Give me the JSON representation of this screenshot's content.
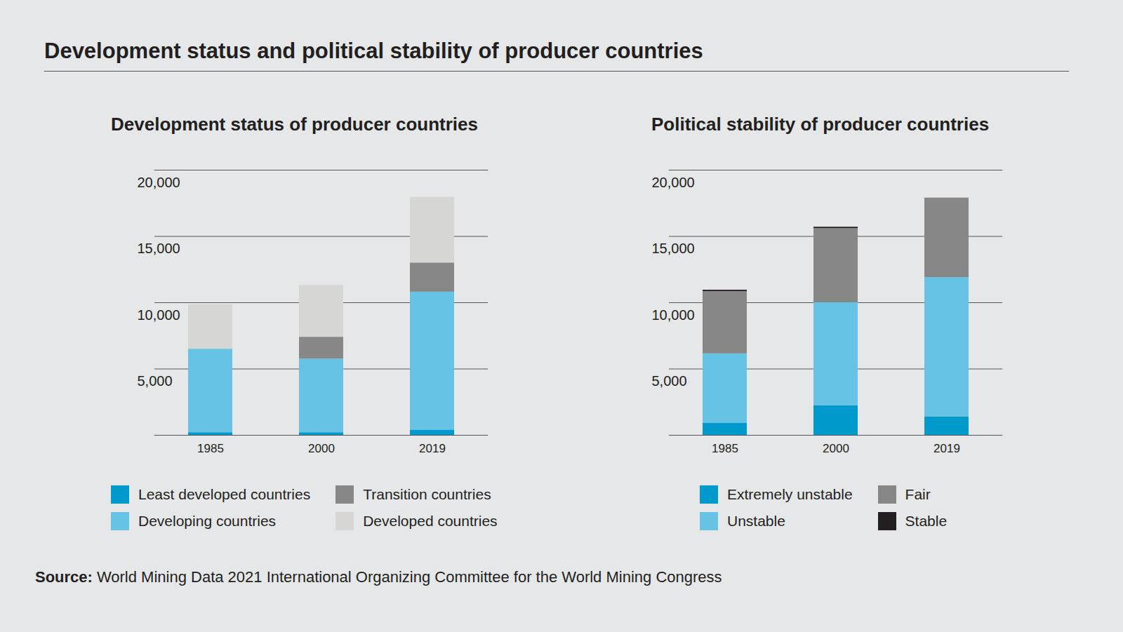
{
  "title": "Development status and political stability of producer countries",
  "source_label": "Source:",
  "source": "World Mining Data 2021 International Organizing Committee for the World Mining Congress",
  "chart_data": [
    {
      "type": "bar",
      "title": "Development status of producer countries",
      "categories": [
        "1985",
        "2000",
        "2019"
      ],
      "series": [
        {
          "name": "Least developed countries",
          "color": "#0099cc",
          "values": [
            200,
            200,
            400
          ]
        },
        {
          "name": "Developing countries",
          "color": "#66c3e3",
          "values": [
            6300,
            5550,
            10400
          ]
        },
        {
          "name": "Transition countries",
          "color": "#878787",
          "values": [
            0,
            1650,
            2200
          ]
        },
        {
          "name": "Developed countries",
          "color": "#d6d6d4",
          "values": [
            3350,
            3900,
            4950
          ]
        }
      ],
      "ylim": [
        0,
        20000
      ],
      "yticks": [
        {
          "value": 5000,
          "label": "5,000"
        },
        {
          "value": 10000,
          "label": "10,000"
        },
        {
          "value": 15000,
          "label": "15,000"
        },
        {
          "value": 20000,
          "label": "20,000"
        }
      ],
      "stacked": true,
      "grid": true,
      "legend": "bottom"
    },
    {
      "type": "bar",
      "title": "Political stability of producer countries",
      "categories": [
        "1985",
        "2000",
        "2019"
      ],
      "series": [
        {
          "name": "Extremely unstable",
          "color": "#0099cc",
          "values": [
            900,
            2250,
            1400
          ]
        },
        {
          "name": "Unstable",
          "color": "#66c3e3",
          "values": [
            5250,
            7750,
            10500
          ]
        },
        {
          "name": "Fair",
          "color": "#878787",
          "values": [
            4700,
            5600,
            6000
          ]
        },
        {
          "name": "Stable",
          "color": "#231f20",
          "values": [
            100,
            100,
            0
          ]
        }
      ],
      "ylim": [
        0,
        20000
      ],
      "yticks": [
        {
          "value": 5000,
          "label": "5,000"
        },
        {
          "value": 10000,
          "label": "10,000"
        },
        {
          "value": 15000,
          "label": "15,000"
        },
        {
          "value": 20000,
          "label": "20,000"
        }
      ],
      "stacked": true,
      "grid": true,
      "legend": "bottom"
    }
  ]
}
